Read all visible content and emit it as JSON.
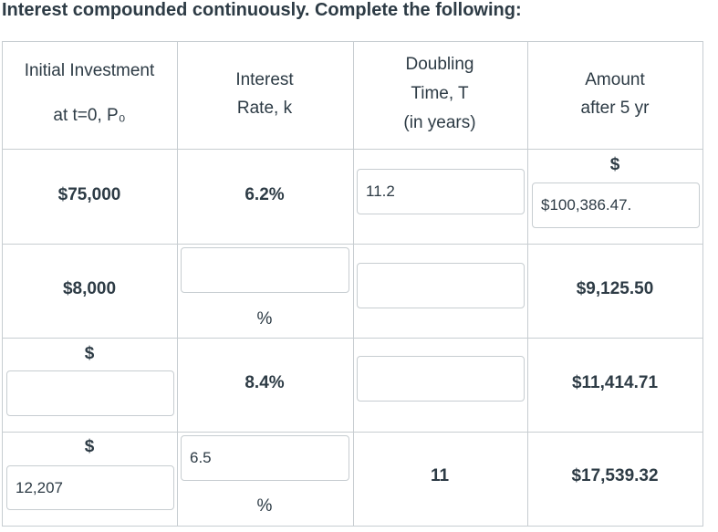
{
  "title": "Interest compounded continuously. Complete the following:",
  "table": {
    "header": [
      [
        "Initial Investment",
        "at t=0, P₀"
      ],
      [
        "Interest",
        "Rate, k"
      ],
      [
        "Doubling",
        "Time, T",
        "(in years)"
      ],
      [
        "Amount",
        "after 5 yr"
      ]
    ],
    "rows": [
      [
        {
          "text": "$75,000"
        },
        {
          "text": "6.2%"
        },
        {
          "input": "11.2"
        },
        {
          "prefix": "$",
          "input": "$100,386.47."
        }
      ],
      [
        {
          "text": "$8,000"
        },
        {
          "suffix": "%"
        },
        null,
        {
          "text": "$9,125.50"
        }
      ],
      [
        {
          "prefix": "$"
        },
        {
          "text": "8.4%"
        },
        null,
        {
          "text": "$11,414.71"
        }
      ],
      [
        {
          "prefix": "$",
          "input": "12,207"
        },
        {
          "input": "6.5",
          "suffix": "%"
        },
        {
          "text": "11"
        },
        {
          "text": "$17,539.32"
        }
      ]
    ]
  }
}
